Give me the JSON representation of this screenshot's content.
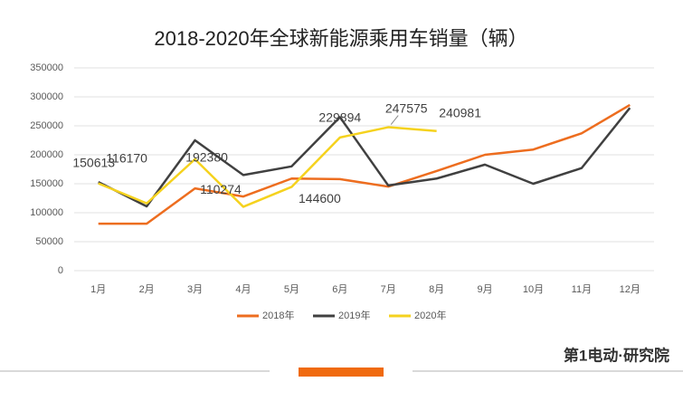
{
  "chart_data": {
    "type": "line",
    "title": "2018-2020年全球新能源乘用车销量（辆）",
    "categories": [
      "1月",
      "2月",
      "3月",
      "4月",
      "5月",
      "6月",
      "7月",
      "8月",
      "9月",
      "10月",
      "11月",
      "12月"
    ],
    "series": [
      {
        "name": "2018年",
        "color": "#ed6d1f",
        "values": [
          81000,
          81000,
          142000,
          128000,
          159000,
          158000,
          145000,
          172000,
          200000,
          209000,
          237000,
          286000
        ]
      },
      {
        "name": "2019年",
        "color": "#404040",
        "values": [
          153000,
          111000,
          225000,
          165000,
          180000,
          265000,
          147000,
          159000,
          183000,
          150000,
          177000,
          281000
        ]
      },
      {
        "name": "2020年",
        "color": "#f5d21e",
        "values": [
          150613,
          116170,
          192380,
          110274,
          144600,
          229894,
          247575,
          240981,
          null,
          null,
          null,
          null
        ],
        "data_labels": true
      }
    ],
    "ylim": [
      0,
      350000
    ],
    "yticks": [
      0,
      50000,
      100000,
      150000,
      200000,
      250000,
      300000,
      350000
    ],
    "grid": true,
    "legend": "bottom",
    "branding": "第1电动·研究院"
  }
}
